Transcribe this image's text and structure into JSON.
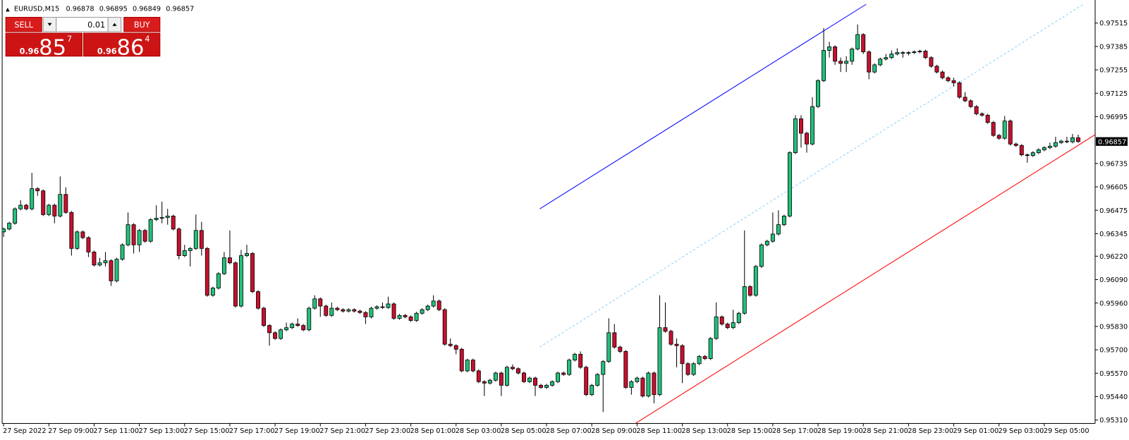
{
  "chart_data": {
    "type": "candlestick",
    "title": "EURUSD,M15",
    "up_color": "#22c17a",
    "down_color": "#c8102e",
    "ylim": [
      0.95291,
      0.97627
    ],
    "yticks": [
      0.97515,
      0.97385,
      0.97255,
      0.97125,
      0.96995,
      0.96735,
      0.96605,
      0.96475,
      0.96345,
      {
        "value": 0.9622,
        "label": "0.96220"
      },
      {
        "value": 0.9609,
        "label": "0.96090"
      },
      {
        "value": 0.9596,
        "label": "0.95960"
      },
      {
        "value": 0.9583,
        "label": "0.95830"
      },
      {
        "value": 0.957,
        "label": "0.95700"
      },
      {
        "value": 0.9557,
        "label": "0.95570"
      },
      {
        "value": 0.9544,
        "label": "0.95440"
      },
      {
        "value": 0.9531,
        "label": "0.95310"
      }
    ],
    "categories": [
      "27 Sep 2022",
      null,
      null,
      null,
      null,
      null,
      null,
      null,
      "27 Sep 09:00",
      null,
      null,
      null,
      null,
      null,
      null,
      null,
      "27 Sep 11:00",
      null,
      null,
      null,
      null,
      null,
      null,
      null,
      "27 Sep 13:00",
      null,
      null,
      null,
      null,
      null,
      null,
      null,
      "27 Sep 15:00",
      null,
      null,
      null,
      null,
      null,
      null,
      null,
      "27 Sep 17:00",
      null,
      null,
      null,
      null,
      null,
      null,
      null,
      "27 Sep 19:00",
      null,
      null,
      null,
      null,
      null,
      null,
      null,
      "27 Sep 21:00",
      null,
      null,
      null,
      null,
      null,
      null,
      null,
      "27 Sep 23:00",
      null,
      null,
      null,
      null,
      null,
      null,
      null,
      "28 Sep 01:00",
      null,
      null,
      null,
      null,
      null,
      null,
      null,
      "28 Sep 03:00",
      null,
      null,
      null,
      null,
      null,
      null,
      null,
      "28 Sep 05:00",
      null,
      null,
      null,
      null,
      null,
      null,
      null,
      "28 Sep 07:00",
      null,
      null,
      null,
      null,
      null,
      null,
      null,
      "28 Sep 09:00",
      null,
      null,
      null,
      null,
      null,
      null,
      null,
      "28 Sep 11:00",
      null,
      null,
      null,
      null,
      null,
      null,
      null,
      "28 Sep 13:00",
      null,
      null,
      null,
      null,
      null,
      null,
      null,
      "28 Sep 15:00",
      null,
      null,
      null,
      null,
      null,
      null,
      null,
      "28 Sep 17:00",
      null,
      null,
      null,
      null,
      null,
      null,
      null,
      "28 Sep 19:00",
      null,
      null,
      null,
      null,
      null,
      null,
      null,
      "28 Sep 21:00",
      null,
      null,
      null,
      null,
      null,
      null,
      null,
      "28 Sep 23:00",
      null,
      null,
      null,
      null,
      null,
      null,
      null,
      "29 Sep 01:00",
      null,
      null,
      null,
      null,
      null,
      null,
      null,
      "29 Sep 03:00",
      null,
      null,
      null,
      null,
      null,
      null,
      null,
      "29 Sep 05:00",
      null,
      null,
      null,
      null,
      null,
      null
    ],
    "open": [
      0.96355,
      0.96371,
      0.96403,
      0.96483,
      0.96503,
      0.96483,
      0.96595,
      0.96583,
      0.96451,
      0.96503,
      0.96443,
      0.96563,
      0.96463,
      0.96263,
      0.96355,
      0.96323,
      0.96243,
      0.96171,
      0.96183,
      0.96195,
      0.96083,
      0.96203,
      0.96283,
      0.96395,
      0.96283,
      0.96363,
      0.96303,
      0.96423,
      0.96431,
      0.96435,
      0.96443,
      0.96371,
      0.96223,
      0.96251,
      0.96263,
      0.96363,
      0.96263,
      0.96003,
      0.96043,
      0.96123,
      0.96211,
      0.96183,
      0.95943,
      0.96223,
      0.96235,
      0.96023,
      0.95931,
      0.95835,
      0.95795,
      0.95763,
      0.95811,
      0.95823,
      0.95843,
      0.95835,
      0.95811,
      0.95931,
      0.95983,
      0.95943,
      0.95891,
      0.95931,
      0.95923,
      0.95915,
      0.95923,
      0.95915,
      0.95907,
      0.95883,
      0.95931,
      0.95939,
      0.95935,
      0.95955,
      0.95875,
      0.95891,
      0.95883,
      0.95863,
      0.95903,
      0.95923,
      0.95943,
      0.95971,
      0.95923,
      0.95731,
      0.95723,
      0.95703,
      0.95583,
      0.95643,
      0.95583,
      0.95523,
      0.95515,
      0.95531,
      0.95571,
      0.95503,
      0.95603,
      0.95595,
      0.95571,
      0.95523,
      0.95543,
      0.95503,
      0.95491,
      0.95503,
      0.95523,
      0.95571,
      0.95563,
      0.95643,
      0.95675,
      0.95603,
      0.95451,
      0.95503,
      0.95563,
      0.95635,
      0.95795,
      0.95715,
      0.95691,
      0.95491,
      0.95523,
      0.95543,
      0.95443,
      0.95571,
      0.95451,
      0.95823,
      0.95803,
      0.95731,
      0.95723,
      0.95623,
      0.95563,
      0.95623,
      0.95663,
      0.95651,
      0.95763,
      0.95883,
      0.95843,
      0.95823,
      0.95851,
      0.95903,
      0.96051,
      0.96003,
      0.96163,
      0.96283,
      0.96303,
      0.96343,
      0.96395,
      0.96443,
      0.96795,
      0.96983,
      0.96903,
      0.96843,
      0.97051,
      0.97195,
      0.97363,
      0.97383,
      0.97303,
      0.97291,
      0.97303,
      0.97371,
      0.97451,
      0.97355,
      0.97243,
      0.97283,
      0.97315,
      0.97323,
      0.97343,
      0.97351,
      0.97347,
      0.97351,
      0.97355,
      0.97359,
      0.97323,
      0.97275,
      0.97243,
      0.97211,
      0.97195,
      0.97183,
      0.97103,
      0.97083,
      0.97051,
      0.97011,
      0.97003,
      0.96963,
      0.96891,
      0.96875,
      0.96971,
      0.96843,
      0.96835,
      0.96783,
      0.96779,
      0.96795,
      0.96811,
      0.96823,
      0.96831,
      0.96851,
      0.96859,
      0.96855,
      0.96878
    ],
    "high": [
      0.96379,
      0.96411,
      0.96491,
      0.96531,
      0.96511,
      0.96683,
      0.96603,
      0.96591,
      0.96511,
      0.96511,
      0.96663,
      0.96603,
      0.96471,
      0.96363,
      0.96363,
      0.96331,
      0.96251,
      0.96211,
      0.96243,
      0.96203,
      0.96211,
      0.96291,
      0.96463,
      0.96403,
      0.96371,
      0.96371,
      0.96431,
      0.96503,
      0.96523,
      0.96483,
      0.96451,
      0.96379,
      0.96283,
      0.96271,
      0.96451,
      0.96411,
      0.96271,
      0.96051,
      0.96131,
      0.96243,
      0.96363,
      0.96191,
      0.96255,
      0.96283,
      0.96243,
      0.96031,
      0.95939,
      0.95843,
      0.95803,
      0.95819,
      0.95851,
      0.95851,
      0.95875,
      0.95843,
      0.95939,
      0.96003,
      0.95991,
      0.95951,
      0.95963,
      0.95939,
      0.95931,
      0.95931,
      0.95931,
      0.95923,
      0.95915,
      0.95939,
      0.95947,
      0.95963,
      0.95995,
      0.95963,
      0.95899,
      0.95899,
      0.95891,
      0.95911,
      0.95931,
      0.95951,
      0.96003,
      0.95979,
      0.95931,
      0.95763,
      0.95731,
      0.95711,
      0.95651,
      0.95651,
      0.95591,
      0.95531,
      0.95539,
      0.95579,
      0.95579,
      0.95611,
      0.95619,
      0.95603,
      0.95579,
      0.95551,
      0.95551,
      0.95511,
      0.95511,
      0.95531,
      0.95579,
      0.95579,
      0.95651,
      0.95683,
      0.95691,
      0.95611,
      0.95511,
      0.95571,
      0.95643,
      0.95875,
      0.95843,
      0.95723,
      0.95699,
      0.95531,
      0.95551,
      0.95551,
      0.95579,
      0.95579,
      0.96003,
      0.95963,
      0.95811,
      0.95763,
      0.95731,
      0.95631,
      0.95631,
      0.95671,
      0.95671,
      0.95771,
      0.95963,
      0.95891,
      0.95851,
      0.95923,
      0.95911,
      0.96363,
      0.96059,
      0.96171,
      0.96291,
      0.96311,
      0.96463,
      0.96475,
      0.96451,
      0.96803,
      0.97003,
      0.97003,
      0.96911,
      0.97103,
      0.97203,
      0.97487,
      0.97411,
      0.97391,
      0.97323,
      0.97331,
      0.97379,
      0.97507,
      0.97459,
      0.97363,
      0.97291,
      0.97323,
      0.97343,
      0.97363,
      0.97375,
      0.97359,
      0.97359,
      0.97363,
      0.97367,
      0.97367,
      0.97331,
      0.97283,
      0.97251,
      0.97219,
      0.97211,
      0.97191,
      0.97131,
      0.97091,
      0.97059,
      0.97019,
      0.97011,
      0.96971,
      0.96899,
      0.96999,
      0.96979,
      0.96851,
      0.96843,
      0.96791,
      0.96803,
      0.96819,
      0.96831,
      0.96851,
      0.96883,
      0.96867,
      0.96883,
      0.96899,
      0.96895
    ],
    "low": [
      0.96327,
      0.96363,
      0.96395,
      0.96475,
      0.96475,
      0.96475,
      0.96555,
      0.96443,
      0.96443,
      0.96403,
      0.96435,
      0.96455,
      0.96223,
      0.96255,
      0.96315,
      0.96215,
      0.96163,
      0.96163,
      0.96163,
      0.96055,
      0.96075,
      0.96195,
      0.96275,
      0.96235,
      0.96243,
      0.96295,
      0.96295,
      0.96415,
      0.96403,
      0.96395,
      0.96363,
      0.96203,
      0.96215,
      0.96163,
      0.96255,
      0.96223,
      0.95995,
      0.95995,
      0.96035,
      0.96115,
      0.96175,
      0.95935,
      0.95935,
      0.96215,
      0.96015,
      0.95923,
      0.95827,
      0.95723,
      0.95755,
      0.95755,
      0.95803,
      0.95815,
      0.95827,
      0.95803,
      0.95803,
      0.95923,
      0.95883,
      0.95883,
      0.95883,
      0.95915,
      0.95907,
      0.95907,
      0.95907,
      0.95899,
      0.95843,
      0.95875,
      0.95923,
      0.95927,
      0.95927,
      0.95867,
      0.95867,
      0.95875,
      0.95855,
      0.95855,
      0.95895,
      0.95915,
      0.95935,
      0.95915,
      0.95723,
      0.95715,
      0.95675,
      0.95575,
      0.95575,
      0.95575,
      0.95515,
      0.95443,
      0.95507,
      0.95523,
      0.95443,
      0.95495,
      0.95587,
      0.95563,
      0.95515,
      0.95515,
      0.95443,
      0.95483,
      0.95483,
      0.95495,
      0.95515,
      0.95555,
      0.95555,
      0.95635,
      0.95595,
      0.95443,
      0.95443,
      0.95495,
      0.95355,
      0.95627,
      0.95707,
      0.95683,
      0.95483,
      0.95451,
      0.95515,
      0.95435,
      0.95435,
      0.95403,
      0.95443,
      0.95795,
      0.95723,
      0.95603,
      0.95515,
      0.95555,
      0.95555,
      0.95615,
      0.95643,
      0.95643,
      0.95755,
      0.95835,
      0.95815,
      0.95815,
      0.95843,
      0.95895,
      0.95995,
      0.95995,
      0.96155,
      0.96275,
      0.96295,
      0.96335,
      0.96387,
      0.96435,
      0.96787,
      0.96823,
      0.96795,
      0.96835,
      0.97043,
      0.97187,
      0.97323,
      0.97283,
      0.97243,
      0.97243,
      0.97283,
      0.97363,
      0.97343,
      0.97203,
      0.97235,
      0.97275,
      0.97307,
      0.97315,
      0.97335,
      0.97323,
      0.97335,
      0.97343,
      0.97347,
      0.97315,
      0.97267,
      0.97235,
      0.97203,
      0.97187,
      0.97163,
      0.97095,
      0.97075,
      0.97043,
      0.97003,
      0.96995,
      0.96955,
      0.96883,
      0.96867,
      0.96867,
      0.96835,
      0.96827,
      0.96775,
      0.96739,
      0.96771,
      0.96787,
      0.96803,
      0.96815,
      0.96823,
      0.96843,
      0.96847,
      0.96847,
      0.96849
    ],
    "close": [
      0.96371,
      0.96403,
      0.96483,
      0.96503,
      0.96483,
      0.96595,
      0.96583,
      0.96451,
      0.96503,
      0.96443,
      0.96563,
      0.96463,
      0.96263,
      0.96355,
      0.96323,
      0.96243,
      0.96171,
      0.96183,
      0.96195,
      0.96083,
      0.96203,
      0.96283,
      0.96395,
      0.96283,
      0.96363,
      0.96303,
      0.96423,
      0.96431,
      0.96435,
      0.96443,
      0.96371,
      0.96223,
      0.96251,
      0.96263,
      0.96363,
      0.96263,
      0.96003,
      0.96043,
      0.96123,
      0.96211,
      0.96183,
      0.95943,
      0.96223,
      0.96235,
      0.96023,
      0.95931,
      0.95835,
      0.95795,
      0.95763,
      0.95811,
      0.95823,
      0.95843,
      0.95835,
      0.95811,
      0.95931,
      0.95983,
      0.95943,
      0.95891,
      0.95931,
      0.95923,
      0.95915,
      0.95923,
      0.95915,
      0.95907,
      0.95883,
      0.95931,
      0.95939,
      0.95935,
      0.95955,
      0.95875,
      0.95891,
      0.95883,
      0.95863,
      0.95903,
      0.95923,
      0.95943,
      0.95971,
      0.95923,
      0.95731,
      0.95723,
      0.95703,
      0.95583,
      0.95643,
      0.95583,
      0.95523,
      0.95515,
      0.95531,
      0.95571,
      0.95503,
      0.95603,
      0.95595,
      0.95571,
      0.95523,
      0.95543,
      0.95503,
      0.95491,
      0.95503,
      0.95523,
      0.95571,
      0.95563,
      0.95643,
      0.95675,
      0.95603,
      0.95451,
      0.95503,
      0.95563,
      0.95635,
      0.95795,
      0.95715,
      0.95691,
      0.95491,
      0.95523,
      0.95543,
      0.95443,
      0.95571,
      0.95451,
      0.95823,
      0.95803,
      0.95731,
      0.95723,
      0.95623,
      0.95563,
      0.95623,
      0.95663,
      0.95651,
      0.95763,
      0.95883,
      0.95843,
      0.95823,
      0.95851,
      0.95903,
      0.96051,
      0.96003,
      0.96163,
      0.96283,
      0.96303,
      0.96343,
      0.96395,
      0.96443,
      0.96795,
      0.96983,
      0.96903,
      0.96843,
      0.97051,
      0.97195,
      0.97363,
      0.97383,
      0.97303,
      0.97291,
      0.97303,
      0.97371,
      0.97451,
      0.97355,
      0.97243,
      0.97283,
      0.97315,
      0.97323,
      0.97343,
      0.97351,
      0.97347,
      0.97351,
      0.97355,
      0.97359,
      0.97323,
      0.97275,
      0.97243,
      0.97211,
      0.97195,
      0.97183,
      0.97103,
      0.97083,
      0.97051,
      0.97011,
      0.97003,
      0.96963,
      0.96891,
      0.96875,
      0.96971,
      0.96843,
      0.96835,
      0.96783,
      0.96779,
      0.96795,
      0.96811,
      0.96823,
      0.96831,
      0.96851,
      0.96859,
      0.96855,
      0.96878,
      0.96857
    ],
    "trendlines": [
      {
        "color": "#0000ff",
        "style": "solid",
        "x": [
          94.8,
          152.5
        ],
        "y": [
          0.96483,
          0.97619
        ]
      },
      {
        "color": "#87cefa",
        "style": "dashed",
        "x": [
          94.8,
          191.1
        ],
        "y": [
          0.95715,
          0.97623
        ]
      },
      {
        "color": "#ff0000",
        "style": "solid",
        "x": [
          111.5,
          193.0
        ],
        "y": [
          0.95287,
          0.96895
        ]
      }
    ]
  },
  "trade_panel": {
    "sell": "SELL",
    "buy": "BUY",
    "volume": "0.01",
    "bid": {
      "prefix": "0.96",
      "big": "85",
      "point": "7"
    },
    "ask": {
      "prefix": "0.96",
      "big": "86",
      "point": "4"
    }
  }
}
